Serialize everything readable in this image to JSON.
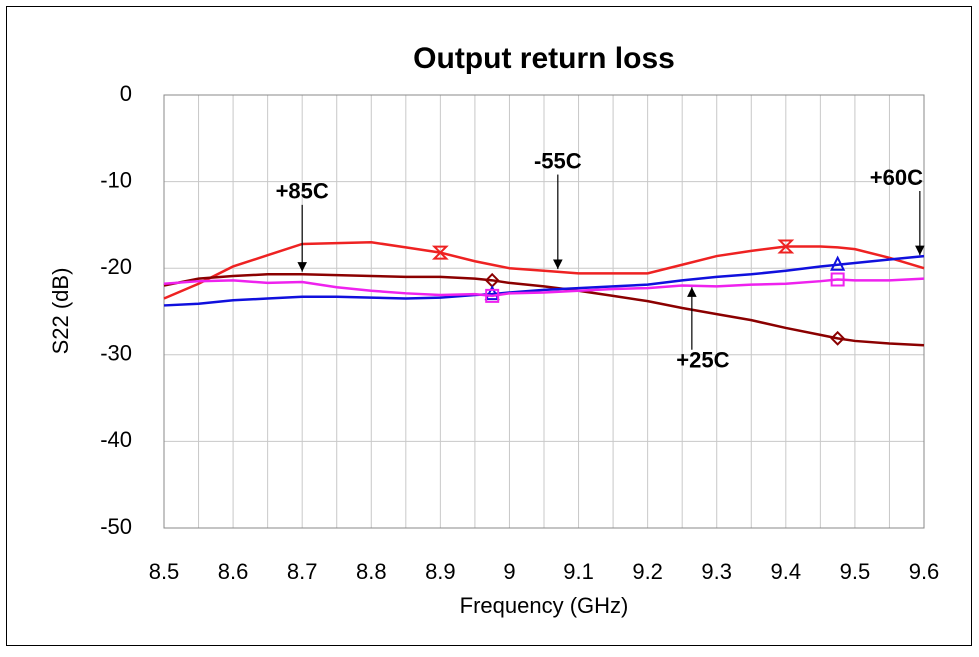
{
  "chart_data": {
    "type": "line",
    "title": "Output return loss",
    "xlabel": "Frequency (GHz)",
    "ylabel": "S22 (dB)",
    "x": [
      8.5,
      8.55,
      8.6,
      8.65,
      8.7,
      8.75,
      8.8,
      8.85,
      8.9,
      8.95,
      8.975,
      9.0,
      9.05,
      9.1,
      9.15,
      9.2,
      9.25,
      9.3,
      9.35,
      9.4,
      9.45,
      9.475,
      9.5,
      9.55,
      9.6
    ],
    "series": [
      {
        "color": "#ee2222",
        "marker": "hourglass",
        "marker_indices": [
          8,
          19
        ],
        "values": [
          -23.5,
          -21.8,
          -19.8,
          -18.5,
          -17.2,
          -17.1,
          -17.0,
          -17.6,
          -18.2,
          -19.2,
          -19.6,
          -20.0,
          -20.3,
          -20.6,
          -20.6,
          -20.6,
          -19.6,
          -18.6,
          -18.0,
          -17.5,
          -17.5,
          -17.6,
          -17.8,
          -18.8,
          -20.0
        ]
      },
      {
        "color": "#8b0000",
        "marker": "diamond",
        "marker_indices": [
          10,
          21
        ],
        "values": [
          -22.0,
          -21.2,
          -20.9,
          -20.7,
          -20.7,
          -20.8,
          -20.9,
          -21.0,
          -21.0,
          -21.2,
          -21.4,
          -21.7,
          -22.1,
          -22.6,
          -23.2,
          -23.8,
          -24.6,
          -25.3,
          -26.0,
          -26.9,
          -27.7,
          -28.1,
          -28.4,
          -28.7,
          -28.9
        ]
      },
      {
        "color": "#1010dd",
        "marker": "triangle",
        "marker_indices": [
          10,
          21
        ],
        "values": [
          -24.3,
          -24.1,
          -23.7,
          -23.5,
          -23.3,
          -23.3,
          -23.4,
          -23.5,
          -23.4,
          -23.1,
          -23.0,
          -22.8,
          -22.5,
          -22.3,
          -22.1,
          -21.9,
          -21.4,
          -21.0,
          -20.7,
          -20.3,
          -19.8,
          -19.6,
          -19.4,
          -19.0,
          -18.6
        ]
      },
      {
        "color": "#ee22ee",
        "marker": "square",
        "marker_indices": [
          10,
          21
        ],
        "values": [
          -21.8,
          -21.5,
          -21.4,
          -21.7,
          -21.6,
          -22.2,
          -22.6,
          -22.9,
          -23.1,
          -23.0,
          -23.2,
          -22.9,
          -22.8,
          -22.6,
          -22.4,
          -22.3,
          -22.0,
          -22.1,
          -21.9,
          -21.8,
          -21.5,
          -21.3,
          -21.4,
          -21.4,
          -21.2
        ]
      }
    ],
    "annotations": [
      {
        "text": "+85C",
        "text_x": 8.7,
        "text_y": -11.3,
        "x": 8.7,
        "y": -20.4
      },
      {
        "text": "-55C",
        "text_x": 9.07,
        "text_y": -7.8,
        "x": 9.07,
        "y": -20.1
      },
      {
        "text": "+60C",
        "text_x": 9.56,
        "text_y": -9.7,
        "x": 9.594,
        "y": -18.5
      },
      {
        "text": "+25C",
        "text_x": 9.28,
        "text_y": -30.8,
        "x": 9.264,
        "y": -22.2
      }
    ],
    "xlim": [
      8.5,
      9.6
    ],
    "xticks": [
      8.5,
      8.6,
      8.7,
      8.8,
      8.9,
      9,
      9.1,
      9.2,
      9.3,
      9.4,
      9.5,
      9.6
    ],
    "xminorticks": [
      8.55,
      8.65,
      8.75,
      8.85,
      8.95,
      9.05,
      9.15,
      9.25,
      9.35,
      9.45,
      9.55
    ],
    "ylim": [
      -50,
      0
    ],
    "yticks": [
      0,
      -10,
      -20,
      -30,
      -40,
      -50
    ],
    "grid": true
  }
}
